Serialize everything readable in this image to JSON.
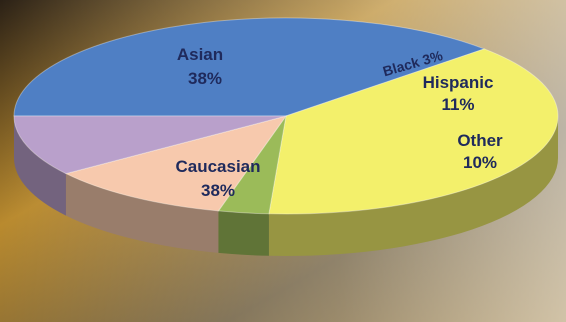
{
  "chart_data": {
    "type": "pie",
    "style": "3d",
    "slices": [
      {
        "label": "Caucasian",
        "value": 38,
        "display": "38%",
        "color": "#4f7fc4"
      },
      {
        "label": "Asian",
        "value": 38,
        "display": "38%",
        "color": "#f3f06b"
      },
      {
        "label": "Black",
        "value": 3,
        "display": "3%",
        "color": "#9bbb59"
      },
      {
        "label": "Hispanic",
        "value": 11,
        "display": "11%",
        "color": "#f7c9ad"
      },
      {
        "label": "Other",
        "value": 10,
        "display": "10%",
        "color": "#b9a0cb"
      }
    ],
    "legend": "none",
    "title": ""
  }
}
